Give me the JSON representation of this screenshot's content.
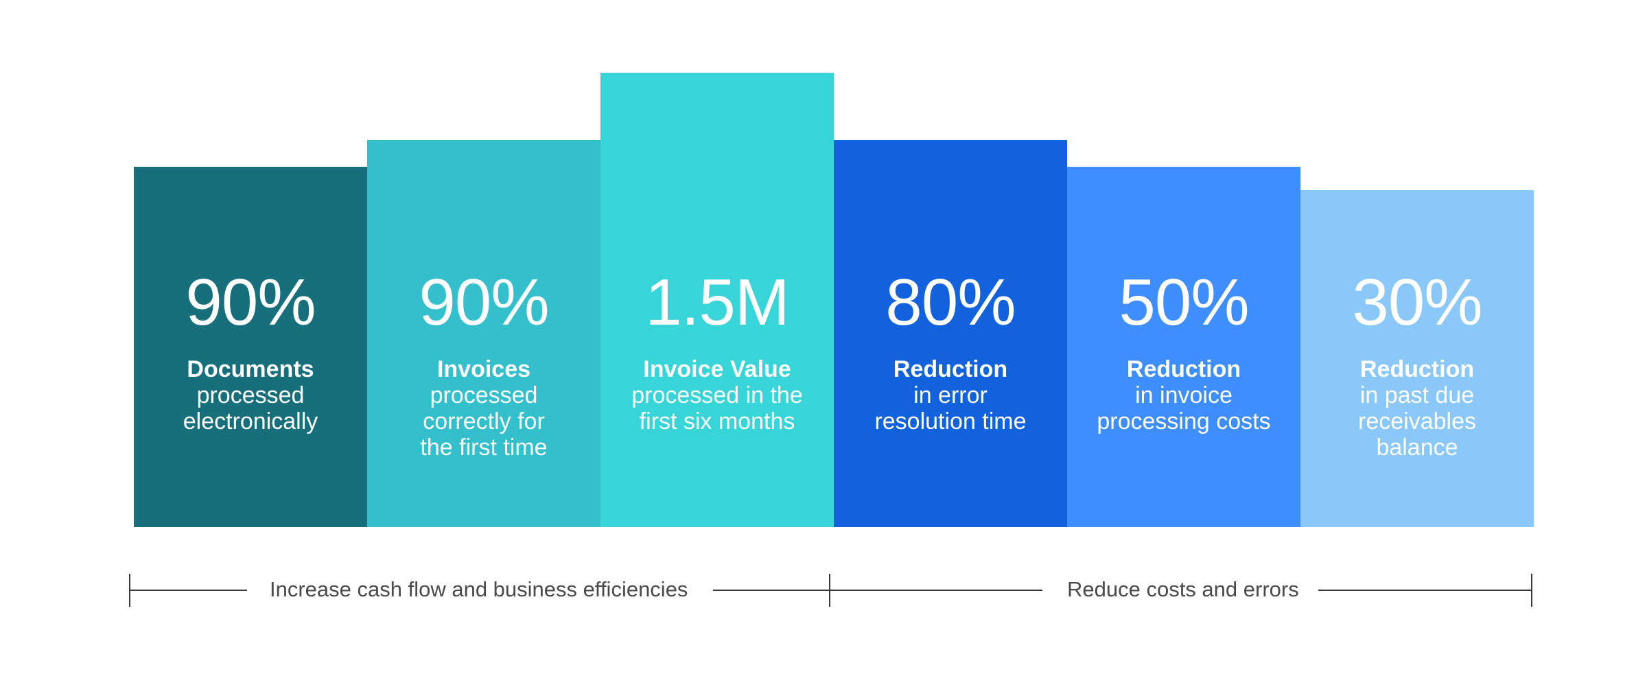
{
  "colors": {
    "col1": "#176f7c",
    "col2": "#33bfcc",
    "col3": "#37d4d8",
    "col4": "#1162dc",
    "col5": "#3e8eff",
    "col6": "#8ac8f9",
    "bracket": "#3a3a3a",
    "label": "#4a4a4a"
  },
  "stats": [
    {
      "value": "90%",
      "heading": "Documents",
      "lines": [
        "processed",
        "electronically"
      ]
    },
    {
      "value": "90%",
      "heading": "Invoices",
      "lines": [
        "processed",
        "correctly for",
        "the first time"
      ]
    },
    {
      "value": "1.5M",
      "heading": "Invoice Value",
      "lines": [
        "processed in the",
        "first six months"
      ]
    },
    {
      "value": "80%",
      "heading": "Reduction",
      "lines": [
        "in error",
        "resolution time"
      ]
    },
    {
      "value": "50%",
      "heading": "Reduction",
      "lines": [
        "in invoice",
        "processing costs"
      ]
    },
    {
      "value": "30%",
      "heading": "Reduction",
      "lines": [
        "in past due",
        "receivables",
        "balance"
      ]
    }
  ],
  "groups": {
    "left": "Increase cash flow and business efficiencies",
    "right": "Reduce costs and errors"
  }
}
